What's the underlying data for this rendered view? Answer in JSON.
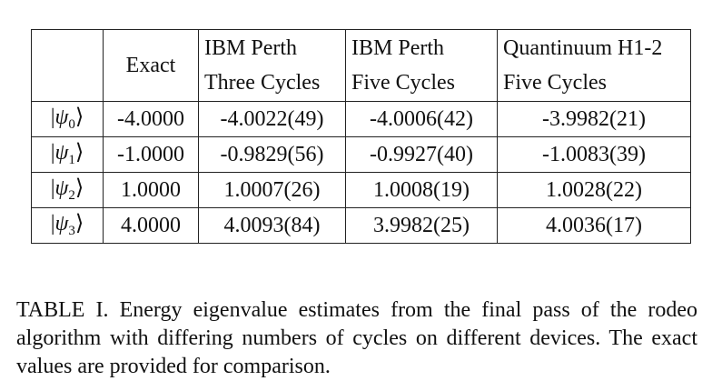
{
  "table": {
    "headers": [
      {
        "lines": [
          ""
        ]
      },
      {
        "lines": [
          "Exact"
        ]
      },
      {
        "lines": [
          "IBM Perth",
          "Three Cycles"
        ]
      },
      {
        "lines": [
          "IBM Perth",
          "Five Cycles"
        ]
      },
      {
        "lines": [
          "Quantinuum H1-2",
          "Five Cycles"
        ]
      }
    ],
    "rows": [
      {
        "label_symbol": "ψ",
        "label_index": "0",
        "values": [
          "-4.0000",
          "-4.0022(49)",
          "-4.0006(42)",
          "-3.9982(21)"
        ]
      },
      {
        "label_symbol": "ψ",
        "label_index": "1",
        "values": [
          "-1.0000",
          "-0.9829(56)",
          "-0.9927(40)",
          "-1.0083(39)"
        ]
      },
      {
        "label_symbol": "ψ",
        "label_index": "2",
        "values": [
          "1.0000",
          "1.0007(26)",
          "1.0008(19)",
          "1.0028(22)"
        ]
      },
      {
        "label_symbol": "ψ",
        "label_index": "3",
        "values": [
          "4.0000",
          "4.0093(84)",
          "3.9982(25)",
          "4.0036(17)"
        ]
      }
    ]
  },
  "caption": "TABLE I. Energy eigenvalue estimates from the final pass of the rodeo algorithm with differing numbers of cycles on different devices. The exact values are provided for comparison."
}
